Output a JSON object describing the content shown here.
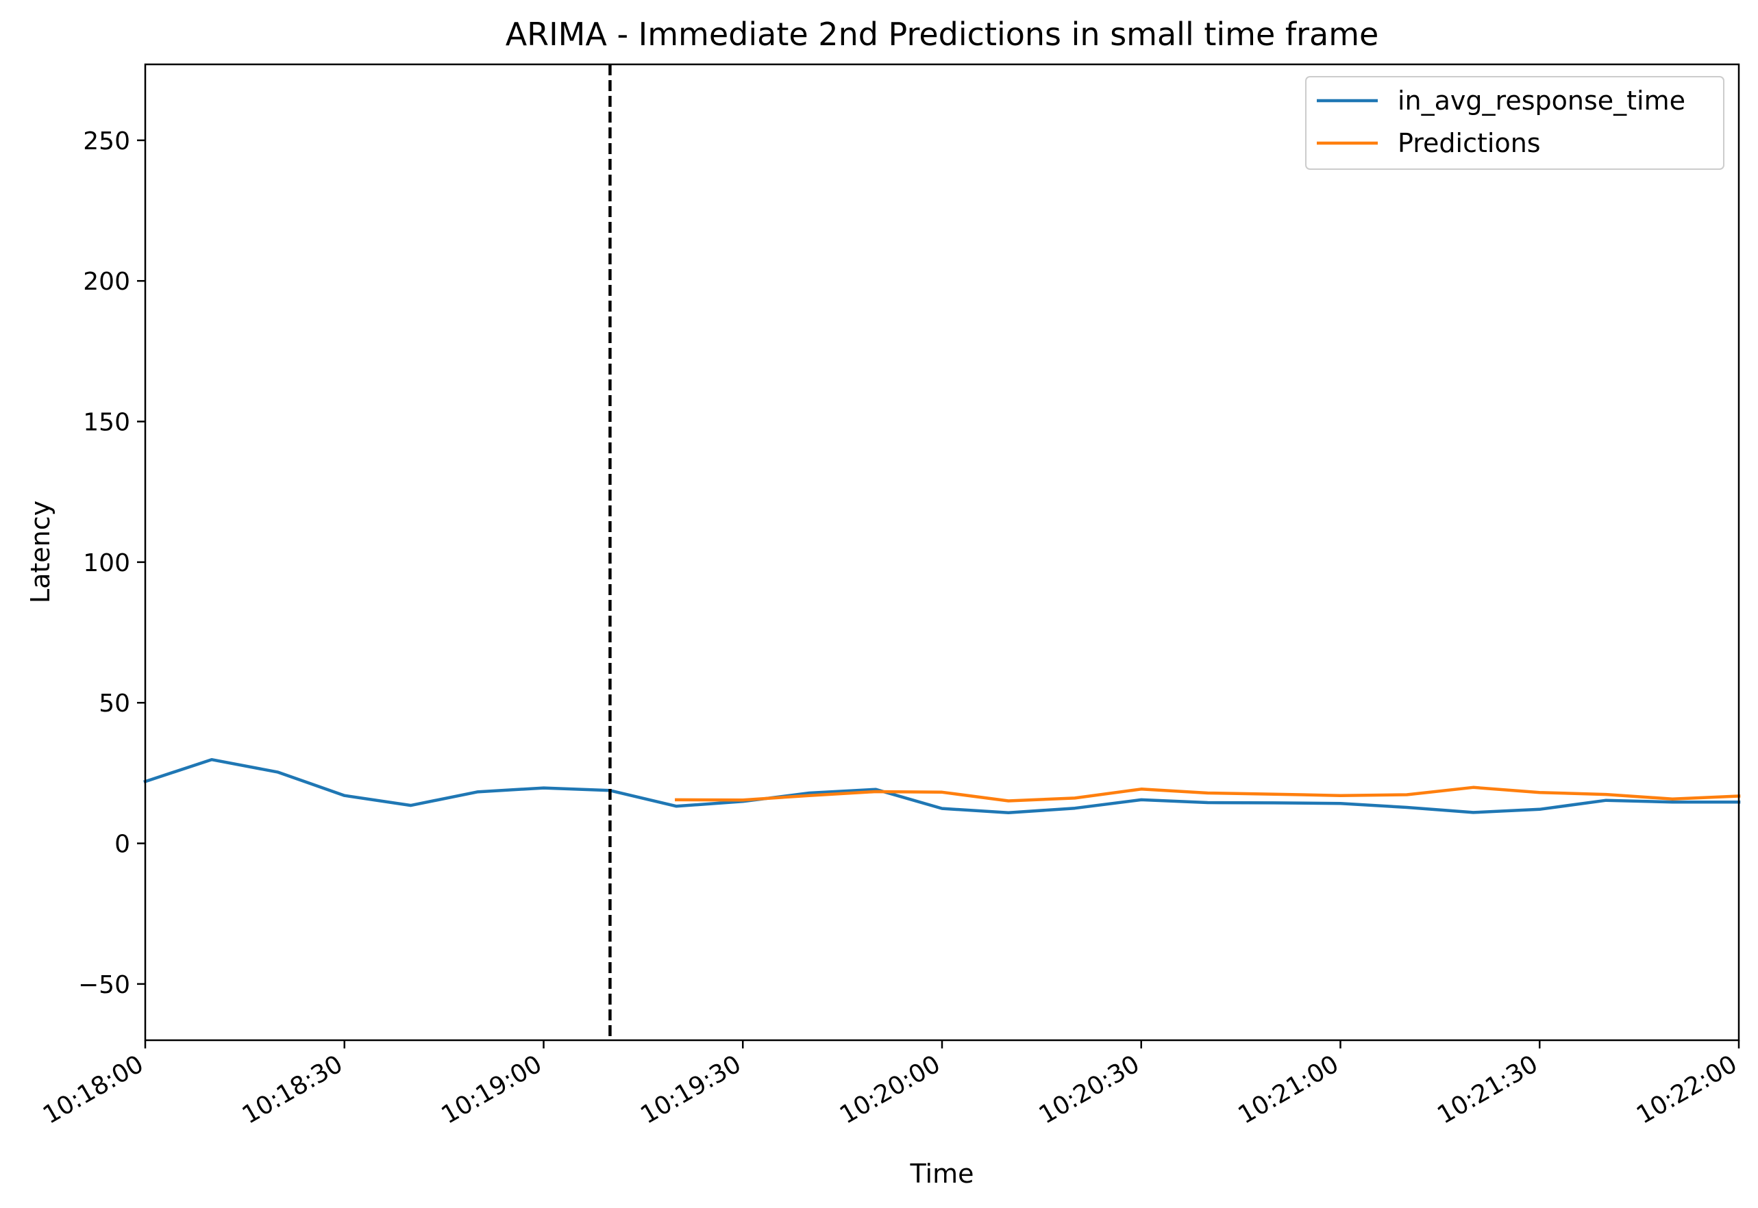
{
  "chart_data": {
    "type": "line",
    "title": "ARIMA - Immediate 2nd Predictions in small time frame",
    "xlabel": "Time",
    "ylabel": "Latency",
    "xlim": [
      "10:18:00",
      "10:22:00"
    ],
    "ylim": [
      -70,
      277
    ],
    "x_ticks": [
      "10:18:00",
      "10:18:30",
      "10:19:00",
      "10:19:30",
      "10:20:00",
      "10:20:30",
      "10:21:00",
      "10:21:30",
      "10:22:00"
    ],
    "y_ticks": [
      -50,
      0,
      50,
      100,
      150,
      200,
      250
    ],
    "y_tick_labels": [
      "−50",
      "0",
      "50",
      "100",
      "150",
      "200",
      "250"
    ],
    "grid": false,
    "legend_position": "top-right",
    "vline": {
      "x": "10:19:10",
      "style": "dashed",
      "color": "#000000"
    },
    "series": [
      {
        "name": "in_avg_response_time",
        "color": "#1f77b4",
        "points": [
          [
            "10:18:00",
            22.0
          ],
          [
            "10:18:10",
            29.8
          ],
          [
            "10:18:20",
            25.3
          ],
          [
            "10:18:30",
            17.0
          ],
          [
            "10:18:40",
            13.5
          ],
          [
            "10:18:50",
            18.3
          ],
          [
            "10:19:00",
            19.7
          ],
          [
            "10:19:10",
            18.8
          ],
          [
            "10:19:20",
            13.2
          ],
          [
            "10:19:30",
            14.9
          ],
          [
            "10:19:40",
            17.9
          ],
          [
            "10:19:50",
            19.2
          ],
          [
            "10:20:00",
            12.4
          ],
          [
            "10:20:10",
            10.9
          ],
          [
            "10:20:20",
            12.5
          ],
          [
            "10:20:30",
            15.5
          ],
          [
            "10:20:40",
            14.5
          ],
          [
            "10:20:50",
            14.4
          ],
          [
            "10:21:00",
            14.2
          ],
          [
            "10:21:10",
            12.8
          ],
          [
            "10:21:20",
            11.0
          ],
          [
            "10:21:30",
            12.1
          ],
          [
            "10:21:40",
            15.3
          ],
          [
            "10:21:50",
            14.7
          ],
          [
            "10:22:00",
            14.7
          ]
        ]
      },
      {
        "name": "Predictions",
        "color": "#ff7f0e",
        "points": [
          [
            "10:19:20",
            15.5
          ],
          [
            "10:19:30",
            15.4
          ],
          [
            "10:19:40",
            17.0
          ],
          [
            "10:19:50",
            18.4
          ],
          [
            "10:20:00",
            18.2
          ],
          [
            "10:20:10",
            15.1
          ],
          [
            "10:20:20",
            16.1
          ],
          [
            "10:20:30",
            19.3
          ],
          [
            "10:20:40",
            17.9
          ],
          [
            "10:20:50",
            17.5
          ],
          [
            "10:21:00",
            17.0
          ],
          [
            "10:21:10",
            17.3
          ],
          [
            "10:21:20",
            19.9
          ],
          [
            "10:21:30",
            18.1
          ],
          [
            "10:21:40",
            17.4
          ],
          [
            "10:21:50",
            15.8
          ],
          [
            "10:22:00",
            16.8
          ]
        ]
      }
    ]
  }
}
